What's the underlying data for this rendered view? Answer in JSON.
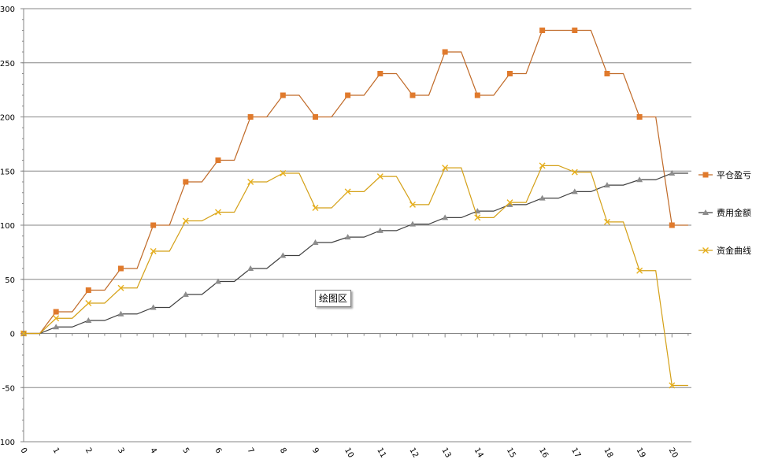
{
  "chart_data": {
    "type": "line",
    "x": [
      0,
      1,
      2,
      3,
      4,
      5,
      6,
      7,
      8,
      9,
      10,
      11,
      12,
      13,
      14,
      15,
      16,
      17,
      18,
      19,
      20
    ],
    "ylim": [
      -100,
      300
    ],
    "yticks": [
      -100,
      -50,
      0,
      50,
      100,
      150,
      200,
      250,
      300
    ],
    "grid": true,
    "legend_position": "right",
    "series": [
      {
        "name": "平仓盈亏",
        "color": "#E07A2C",
        "line_color": "#C06A28",
        "marker": "square",
        "values": [
          0,
          20,
          40,
          60,
          100,
          140,
          160,
          200,
          220,
          200,
          220,
          240,
          220,
          260,
          220,
          240,
          280,
          280,
          240,
          200,
          100
        ]
      },
      {
        "name": "费用金额",
        "color": "#8C8C8C",
        "line_color": "#404040",
        "marker": "triangle",
        "values": [
          0,
          6,
          12,
          18,
          24,
          36,
          48,
          60,
          72,
          84,
          89,
          95,
          101,
          107,
          113,
          119,
          125,
          131,
          137,
          142,
          148
        ]
      },
      {
        "name": "资金曲线",
        "color": "#E8B01C",
        "line_color": "#D4A017",
        "marker": "x",
        "values": [
          0,
          14,
          28,
          42,
          76,
          104,
          112,
          140,
          148,
          116,
          131,
          145,
          119,
          153,
          107,
          121,
          155,
          149,
          103,
          58,
          -48
        ]
      }
    ]
  },
  "plot_area_label": "绘图区"
}
